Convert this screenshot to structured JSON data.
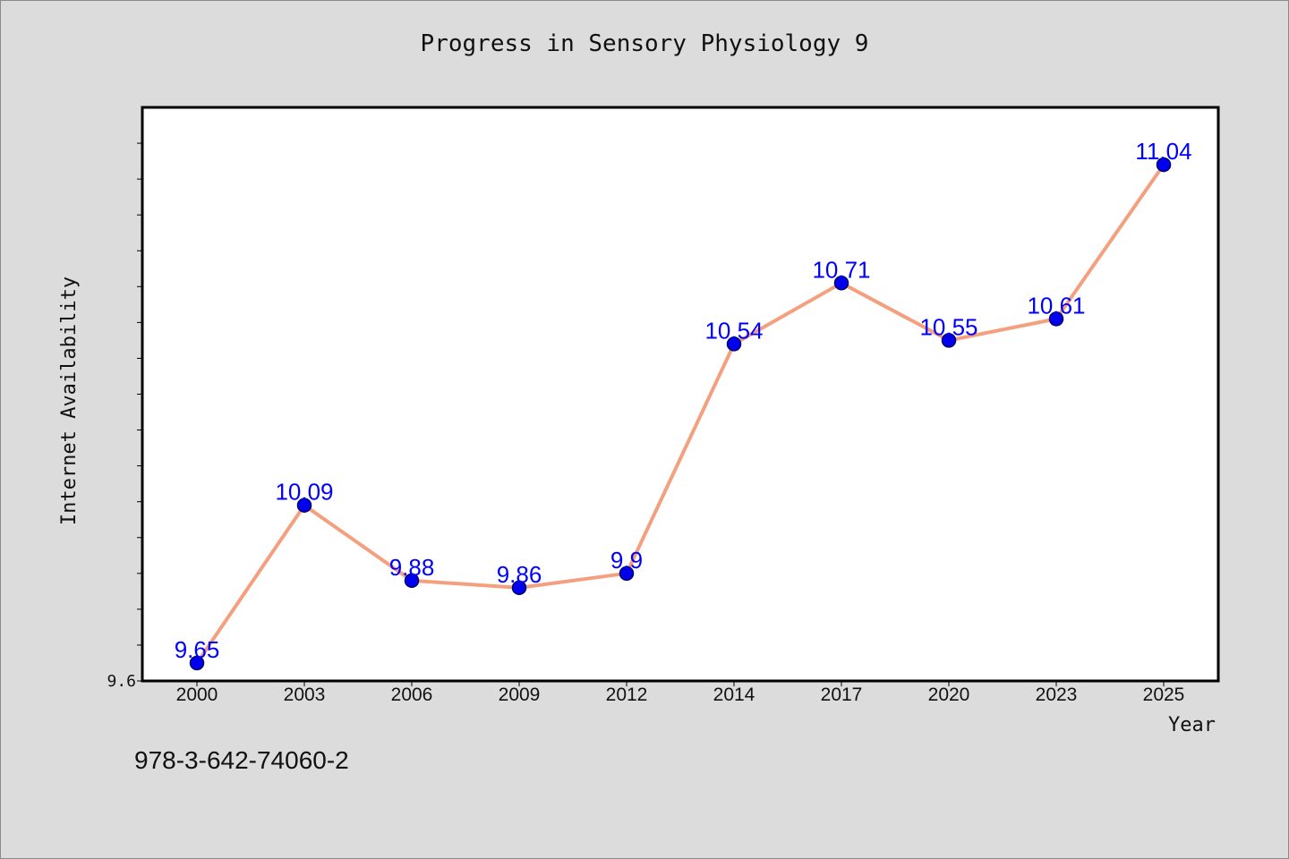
{
  "chart_data": {
    "type": "line",
    "title": "Progress in Sensory Physiology 9",
    "xlabel": "Year",
    "ylabel": "Internet Availability",
    "categories": [
      "2000",
      "2003",
      "2006",
      "2009",
      "2012",
      "2014",
      "2017",
      "2020",
      "2023",
      "2025"
    ],
    "values": [
      9.65,
      10.09,
      9.88,
      9.86,
      9.9,
      10.54,
      10.71,
      10.55,
      10.61,
      11.04
    ],
    "data_labels": [
      "9.65",
      "10.09",
      "9.88",
      "9.86",
      "9.9",
      "10.54",
      "10.71",
      "10.55",
      "10.61",
      "11.04"
    ],
    "ylim": [
      9.6,
      11.2
    ],
    "ytick_labels": [
      "9.6"
    ],
    "y_minor_tick_step": 0.1,
    "grid": false,
    "legend": "none",
    "colors": {
      "line": "#f4a07f",
      "marker": "#0000ee",
      "marker_edge": "#00006b",
      "data_label": "#0000ff",
      "plot_background": "#ffffff",
      "figure_background": "#dcdcdc"
    }
  },
  "footer": {
    "isbn": "978-3-642-74060-2"
  }
}
